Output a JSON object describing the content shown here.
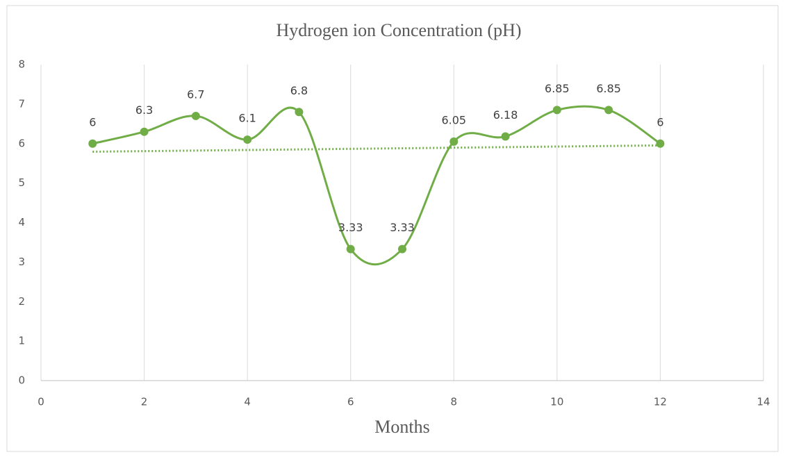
{
  "chart_data": {
    "type": "line",
    "title": "Hydrogen ion Concentration (pH)",
    "x_label": "Months",
    "x": [
      1,
      2,
      3,
      4,
      5,
      6,
      7,
      8,
      9,
      10,
      11,
      12
    ],
    "series": [
      {
        "name": "pH",
        "color": "#70ad47",
        "values": [
          6,
          6.3,
          6.7,
          6.1,
          6.8,
          3.33,
          3.33,
          6.05,
          6.18,
          6.85,
          6.85,
          6
        ]
      }
    ],
    "smooth": true,
    "trendline": "linear",
    "xlim": [
      0,
      14
    ],
    "xticks": [
      0,
      2,
      4,
      6,
      8,
      10,
      12,
      14
    ],
    "ylim": [
      0,
      8
    ],
    "yticks": [
      0,
      1,
      2,
      3,
      4,
      5,
      6,
      7,
      8
    ],
    "grid": "x"
  }
}
